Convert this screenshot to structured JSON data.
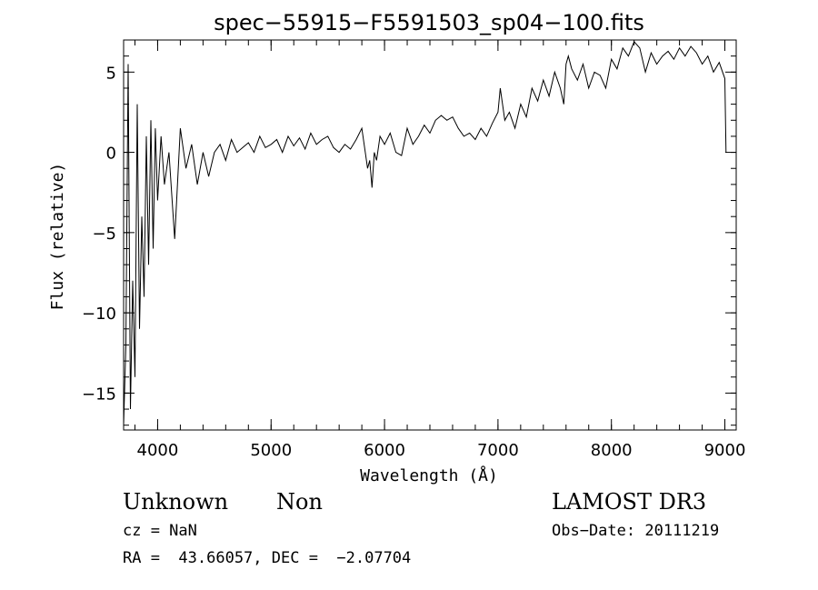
{
  "chart_data": {
    "type": "line",
    "title": "spec−55915−F5591503_sp04−100.fits",
    "xlabel": "Wavelength (Å)",
    "ylabel": "Flux (relative)",
    "xlim": [
      3700,
      9100
    ],
    "ylim": [
      -17.3,
      7.0
    ],
    "x_ticks": [
      {
        "value": 4000,
        "label": "4000"
      },
      {
        "value": 5000,
        "label": "5000"
      },
      {
        "value": 6000,
        "label": "6000"
      },
      {
        "value": 7000,
        "label": "7000"
      },
      {
        "value": 8000,
        "label": "8000"
      },
      {
        "value": 9000,
        "label": "9000"
      }
    ],
    "y_ticks": [
      {
        "value": 5,
        "label": "5"
      },
      {
        "value": 0,
        "label": "0"
      },
      {
        "value": -5,
        "label": "−5"
      },
      {
        "value": -10,
        "label": "−10"
      },
      {
        "value": -15,
        "label": "−15"
      }
    ],
    "x_minor_step": 200,
    "y_minor_step": 1,
    "grid": false,
    "series": [
      {
        "color": "#000000",
        "x": [
          3700,
          3720,
          3740,
          3760,
          3780,
          3800,
          3820,
          3840,
          3860,
          3880,
          3900,
          3920,
          3940,
          3960,
          3980,
          4000,
          4030,
          4060,
          4100,
          4150,
          4200,
          4250,
          4300,
          4350,
          4400,
          4450,
          4500,
          4550,
          4600,
          4650,
          4700,
          4750,
          4800,
          4850,
          4900,
          4950,
          5000,
          5050,
          5100,
          5150,
          5200,
          5250,
          5300,
          5350,
          5400,
          5450,
          5500,
          5550,
          5600,
          5650,
          5700,
          5750,
          5800,
          5830,
          5850,
          5870,
          5890,
          5910,
          5930,
          5960,
          6000,
          6050,
          6100,
          6150,
          6200,
          6250,
          6300,
          6350,
          6400,
          6450,
          6500,
          6550,
          6600,
          6650,
          6700,
          6750,
          6800,
          6850,
          6900,
          6950,
          7000,
          7020,
          7040,
          7060,
          7100,
          7150,
          7200,
          7250,
          7300,
          7350,
          7400,
          7450,
          7500,
          7550,
          7580,
          7600,
          7620,
          7650,
          7700,
          7750,
          7800,
          7850,
          7900,
          7950,
          8000,
          8050,
          8100,
          8150,
          8200,
          8250,
          8300,
          8350,
          8400,
          8450,
          8500,
          8550,
          8600,
          8650,
          8700,
          8750,
          8800,
          8850,
          8900,
          8950,
          9000,
          9010
        ],
        "y": [
          -17,
          -12,
          5.5,
          -16,
          -8,
          -14,
          3,
          -11,
          -4,
          -9,
          1,
          -7,
          2,
          -6,
          1.5,
          -3,
          1,
          -2,
          0,
          -5.4,
          1.5,
          -1,
          0.5,
          -2,
          0,
          -1.5,
          0,
          0.5,
          -0.5,
          0.8,
          0,
          0.3,
          0.6,
          0,
          1,
          0.3,
          0.5,
          0.8,
          0,
          1,
          0.4,
          0.9,
          0.2,
          1.2,
          0.5,
          0.8,
          1,
          0.3,
          0,
          0.5,
          0.2,
          0.8,
          1.5,
          0,
          -1,
          -0.5,
          -2.2,
          0,
          -0.5,
          1,
          0.5,
          1.2,
          0,
          -0.2,
          1.5,
          0.5,
          1,
          1.7,
          1.2,
          2,
          2.3,
          2,
          2.2,
          1.5,
          1,
          1.2,
          0.8,
          1.5,
          1,
          1.8,
          2.5,
          4,
          3,
          2,
          2.5,
          1.5,
          3,
          2.2,
          4,
          3.2,
          4.5,
          3.5,
          5,
          4,
          3,
          5.5,
          6,
          5.2,
          4.5,
          5.5,
          4,
          5,
          4.8,
          4,
          5.8,
          5.2,
          6.5,
          6,
          6.9,
          6.5,
          5,
          6.2,
          5.5,
          6,
          6.3,
          5.8,
          6.5,
          6,
          6.6,
          6.2,
          5.5,
          6,
          5,
          5.6,
          4.6,
          0
        ]
      }
    ]
  },
  "info": {
    "class_label": "Unknown",
    "subclass_label": "Non",
    "redshift_text": "cz = NaN",
    "coords_text": "RA =  43.66057, DEC =  −2.07704",
    "survey_label": "LAMOST DR3",
    "obs_date_text": "Obs−Date: 20111219"
  }
}
